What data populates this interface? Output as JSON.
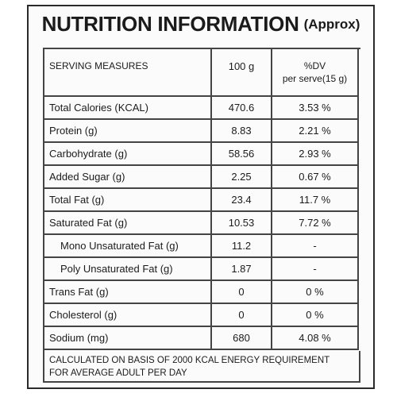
{
  "title": {
    "main": "NUTRITION INFORMATION",
    "sub": "(Approx)"
  },
  "header": {
    "measure": "SERVING MEASURES",
    "per100": "100 g",
    "dv_line1": "%DV",
    "dv_line2": "per serve(15 g)"
  },
  "rows": [
    {
      "name": "Total Calories (KCAL)",
      "per100": "470.6",
      "dv": "3.53 %"
    },
    {
      "name": "Protein (g)",
      "per100": "8.83",
      "dv": "2.21 %"
    },
    {
      "name": "Carbohydrate (g)",
      "per100": "58.56",
      "dv": "2.93 %"
    },
    {
      "name": "Added Sugar (g)",
      "per100": "2.25",
      "dv": "0.67 %"
    },
    {
      "name": "Total Fat (g)",
      "per100": "23.4",
      "dv": "11.7 %"
    },
    {
      "name": "Saturated Fat (g)",
      "per100": "10.53",
      "dv": "7.72 %"
    },
    {
      "name": "Mono Unsaturated Fat (g)",
      "per100": "11.2",
      "dv": "-"
    },
    {
      "name": "Poly Unsaturated Fat (g)",
      "per100": "1.87",
      "dv": "-"
    },
    {
      "name": "Trans Fat (g)",
      "per100": "0",
      "dv": "0 %"
    },
    {
      "name": "Cholesterol (g)",
      "per100": "0",
      "dv": "0 %"
    },
    {
      "name": "Sodium (mg)",
      "per100": "680",
      "dv": "4.08 %"
    }
  ],
  "footer": {
    "line1": "CALCULATED ON BASIS OF 2000 KCAL ENERGY REQUIREMENT",
    "line2": "FOR AVERAGE ADULT PER DAY"
  }
}
